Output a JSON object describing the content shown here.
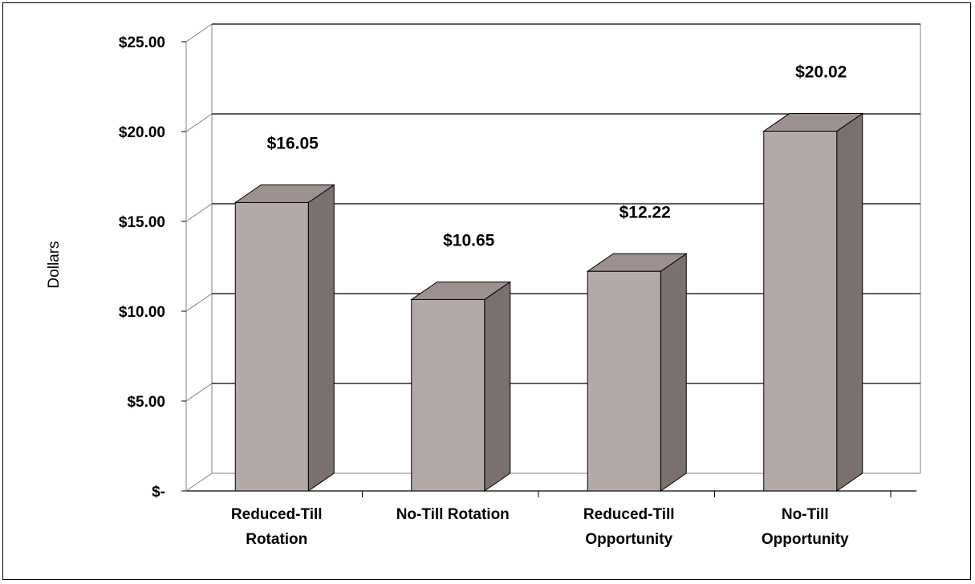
{
  "chart_data": {
    "type": "bar",
    "style": "3d-column",
    "title": "",
    "xlabel": "",
    "ylabel": "Dollars",
    "ylim": [
      0,
      25
    ],
    "yticks": [
      0,
      5,
      10,
      15,
      20,
      25
    ],
    "ytick_labels": [
      "$-",
      "$5.00",
      "$10.00",
      "$15.00",
      "$20.00",
      "$25.00"
    ],
    "categories": [
      [
        "Reduced-Till",
        "Rotation"
      ],
      [
        "No-Till Rotation"
      ],
      [
        "Reduced-Till",
        "Opportunity"
      ],
      [
        "No-Till",
        "Opportunity"
      ]
    ],
    "values": [
      16.05,
      10.65,
      12.22,
      20.02
    ],
    "data_labels": [
      "$16.05",
      "$10.65",
      "$12.22",
      "$20.02"
    ],
    "grid": true,
    "legend": "none",
    "colors": {
      "bar_front": "#b3aaa7",
      "bar_top": "#9c918e",
      "bar_side": "#7a706d",
      "gridline": "#000000",
      "wall_edge": "#808080"
    }
  }
}
